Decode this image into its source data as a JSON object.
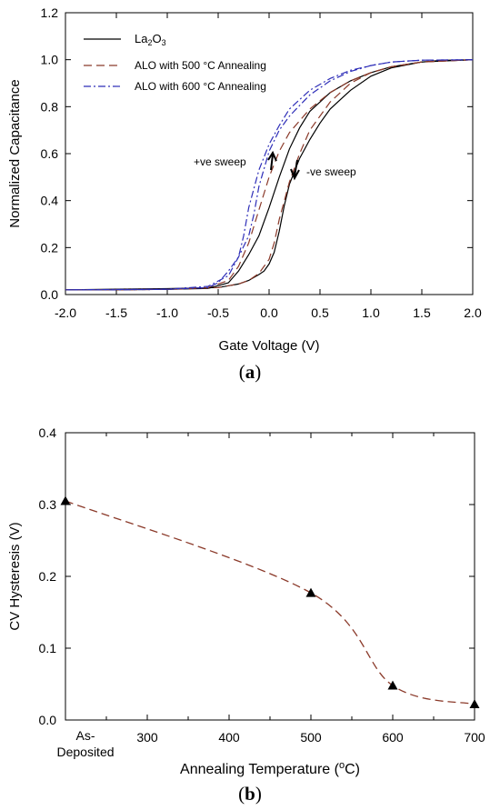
{
  "chart_data": [
    {
      "type": "line",
      "panel_label": "a",
      "xlabel": "Gate Voltage (V)",
      "ylabel": "Normalized Capacitance",
      "xlim": [
        -2.0,
        2.0
      ],
      "ylim": [
        0.0,
        1.2
      ],
      "x_ticks": [
        "-2.0",
        "-1.5",
        "-1.0",
        "-0.5",
        "0.0",
        "0.5",
        "1.0",
        "1.5",
        "2.0"
      ],
      "y_ticks": [
        "0.0",
        "0.2",
        "0.4",
        "0.6",
        "0.8",
        "1.0",
        "1.2"
      ],
      "grid": false,
      "legend_position": "top-left",
      "annotations": {
        "pos_sweep": "+ve sweep",
        "neg_sweep": "-ve sweep"
      },
      "series": [
        {
          "name": "La2O3",
          "color": "#000000",
          "line_style": "solid",
          "forward": {
            "x": [
              -2.0,
              -1.5,
              -1.0,
              -0.6,
              -0.4,
              -0.3,
              -0.2,
              -0.1,
              0.0,
              0.1,
              0.2,
              0.3,
              0.4,
              0.6,
              0.8,
              1.0,
              1.2,
              1.5,
              1.7,
              2.0
            ],
            "y": [
              0.02,
              0.02,
              0.022,
              0.026,
              0.05,
              0.1,
              0.17,
              0.25,
              0.37,
              0.5,
              0.62,
              0.71,
              0.78,
              0.86,
              0.91,
              0.945,
              0.97,
              0.99,
              0.997,
              1.0
            ]
          },
          "reverse": {
            "x": [
              2.0,
              1.5,
              1.2,
              1.0,
              0.8,
              0.6,
              0.5,
              0.4,
              0.3,
              0.2,
              0.15,
              0.1,
              0.05,
              0.0,
              -0.05,
              -0.1,
              -0.2,
              -0.3,
              -0.5,
              -1.0,
              -2.0
            ],
            "y": [
              1.0,
              0.99,
              0.965,
              0.93,
              0.87,
              0.79,
              0.73,
              0.66,
              0.58,
              0.47,
              0.38,
              0.27,
              0.18,
              0.13,
              0.1,
              0.085,
              0.06,
              0.045,
              0.03,
              0.025,
              0.02
            ]
          }
        },
        {
          "name": "ALO with 500 °C Annealing",
          "color": "#8b3a2a",
          "line_style": "dashed",
          "forward": {
            "x": [
              -2.0,
              -1.5,
              -1.0,
              -0.6,
              -0.4,
              -0.3,
              -0.2,
              -0.1,
              0.0,
              0.1,
              0.2,
              0.4,
              0.6,
              0.8,
              1.0,
              1.2,
              1.5,
              2.0
            ],
            "y": [
              0.02,
              0.02,
              0.022,
              0.03,
              0.06,
              0.12,
              0.22,
              0.36,
              0.5,
              0.61,
              0.69,
              0.79,
              0.86,
              0.91,
              0.945,
              0.97,
              0.99,
              1.0
            ]
          },
          "reverse": {
            "x": [
              2.0,
              1.5,
              1.2,
              1.0,
              0.8,
              0.6,
              0.4,
              0.3,
              0.2,
              0.1,
              0.05,
              0.0,
              -0.1,
              -0.2,
              -0.3,
              -0.5,
              -1.0,
              -2.0
            ],
            "y": [
              1.0,
              0.99,
              0.97,
              0.945,
              0.9,
              0.82,
              0.7,
              0.6,
              0.48,
              0.32,
              0.22,
              0.15,
              0.09,
              0.06,
              0.045,
              0.03,
              0.022,
              0.02
            ]
          }
        },
        {
          "name": "ALO with 600 °C Annealing",
          "color": "#2e2eb8",
          "line_style": "dash-dot",
          "forward": {
            "x": [
              -2.0,
              -1.5,
              -1.0,
              -0.6,
              -0.5,
              -0.4,
              -0.3,
              -0.25,
              -0.2,
              -0.1,
              0.0,
              0.1,
              0.2,
              0.4,
              0.6,
              0.8,
              1.0,
              1.2,
              1.5,
              2.0
            ],
            "y": [
              0.02,
              0.02,
              0.022,
              0.03,
              0.05,
              0.1,
              0.16,
              0.25,
              0.37,
              0.53,
              0.64,
              0.72,
              0.79,
              0.87,
              0.92,
              0.955,
              0.975,
              0.99,
              0.998,
              1.0
            ]
          },
          "reverse": {
            "x": [
              2.0,
              1.5,
              1.2,
              1.0,
              0.8,
              0.6,
              0.4,
              0.2,
              0.1,
              0.0,
              -0.1,
              -0.15,
              -0.2,
              -0.3,
              -0.4,
              -0.6,
              -1.0,
              -2.0
            ],
            "y": [
              1.0,
              0.998,
              0.99,
              0.975,
              0.95,
              0.91,
              0.85,
              0.76,
              0.7,
              0.61,
              0.46,
              0.34,
              0.25,
              0.16,
              0.08,
              0.035,
              0.023,
              0.02
            ]
          }
        }
      ]
    },
    {
      "type": "line",
      "panel_label": "b",
      "xlabel": "Annealing Temperature (",
      "xlabel_sup": "o",
      "xlabel_tail": "C)",
      "ylabel": "CV Hysteresis (V)",
      "xlim": [
        200,
        700
      ],
      "ylim": [
        0.0,
        0.4
      ],
      "x_ticks": [
        "300",
        "400",
        "500",
        "600",
        "700"
      ],
      "x_first_tick_label": [
        "As-",
        "Deposited"
      ],
      "y_ticks": [
        "0.0",
        "0.1",
        "0.2",
        "0.3",
        "0.4"
      ],
      "grid": false,
      "categories": [
        "As-Deposited",
        "500",
        "600",
        "700"
      ],
      "x": [
        200,
        500,
        600,
        700
      ],
      "values": [
        0.305,
        0.177,
        0.048,
        0.022
      ],
      "color": "#8b3a2a",
      "line_style": "dashed",
      "marker": "triangle"
    }
  ]
}
